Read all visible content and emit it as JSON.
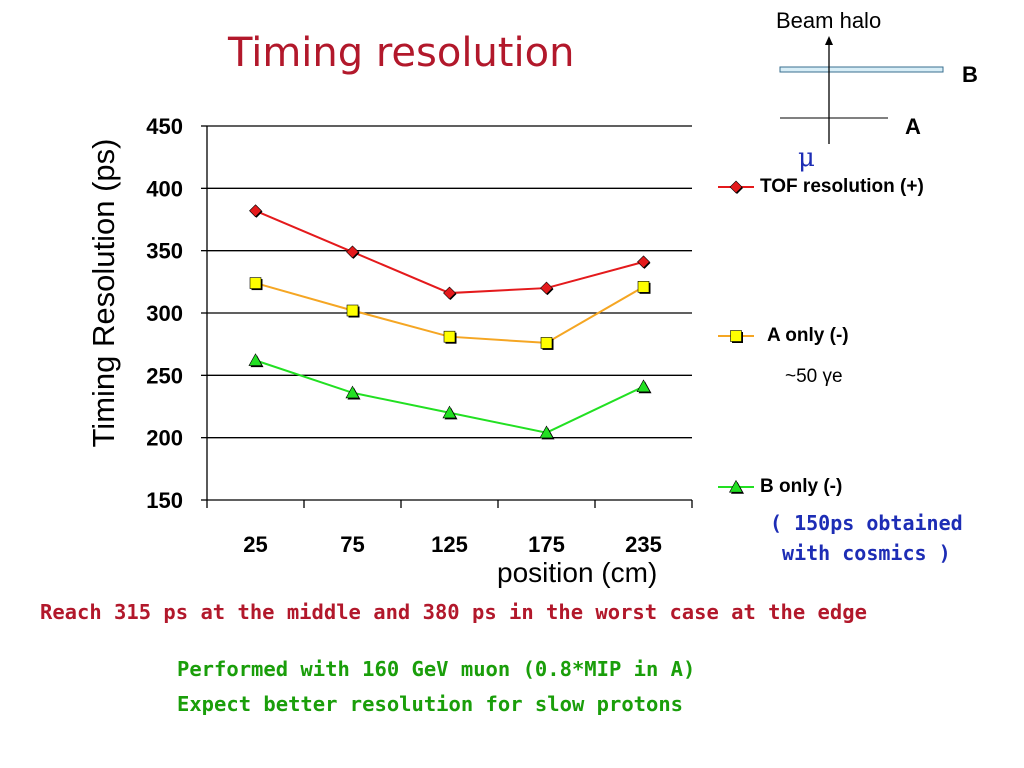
{
  "slide": {
    "title": "Timing resolution",
    "reach_note": "Reach 315 ps at the middle and 380 ps in the worst case at the edge",
    "notes": [
      "Performed with 160 GeV muon (0.8*MIP in A)",
      "Expect better resolution for slow protons"
    ],
    "gamma_note": "~50 γe",
    "cosmics_note": [
      "( 150ps obtained",
      "with cosmics )"
    ]
  },
  "diagram": {
    "beam_halo": "Beam halo",
    "label_b": "B",
    "label_a": "A",
    "mu": "μ"
  },
  "chart_data": {
    "type": "line",
    "categories": [
      "25",
      "75",
      "125",
      "175",
      "235"
    ],
    "xlabel": "position (cm)",
    "ylabel": "Timing Resolution (ps)",
    "ylim": [
      150,
      450
    ],
    "yticks": [
      "150",
      "200",
      "250",
      "300",
      "350",
      "400",
      "450"
    ],
    "grid": "horizontal",
    "legend_position": "right",
    "series": [
      {
        "name": "TOF resolution (+)",
        "values": [
          382,
          349,
          316,
          320,
          341
        ],
        "color": "#e41a1c",
        "marker": "diamond"
      },
      {
        "name": "A only (-)",
        "values": [
          324,
          302,
          281,
          276,
          321
        ],
        "color": "#f5a623",
        "marker": "square"
      },
      {
        "name": "B only (-)",
        "values": [
          262,
          236,
          220,
          204,
          241
        ],
        "color": "#22e022",
        "marker": "triangle"
      }
    ]
  }
}
